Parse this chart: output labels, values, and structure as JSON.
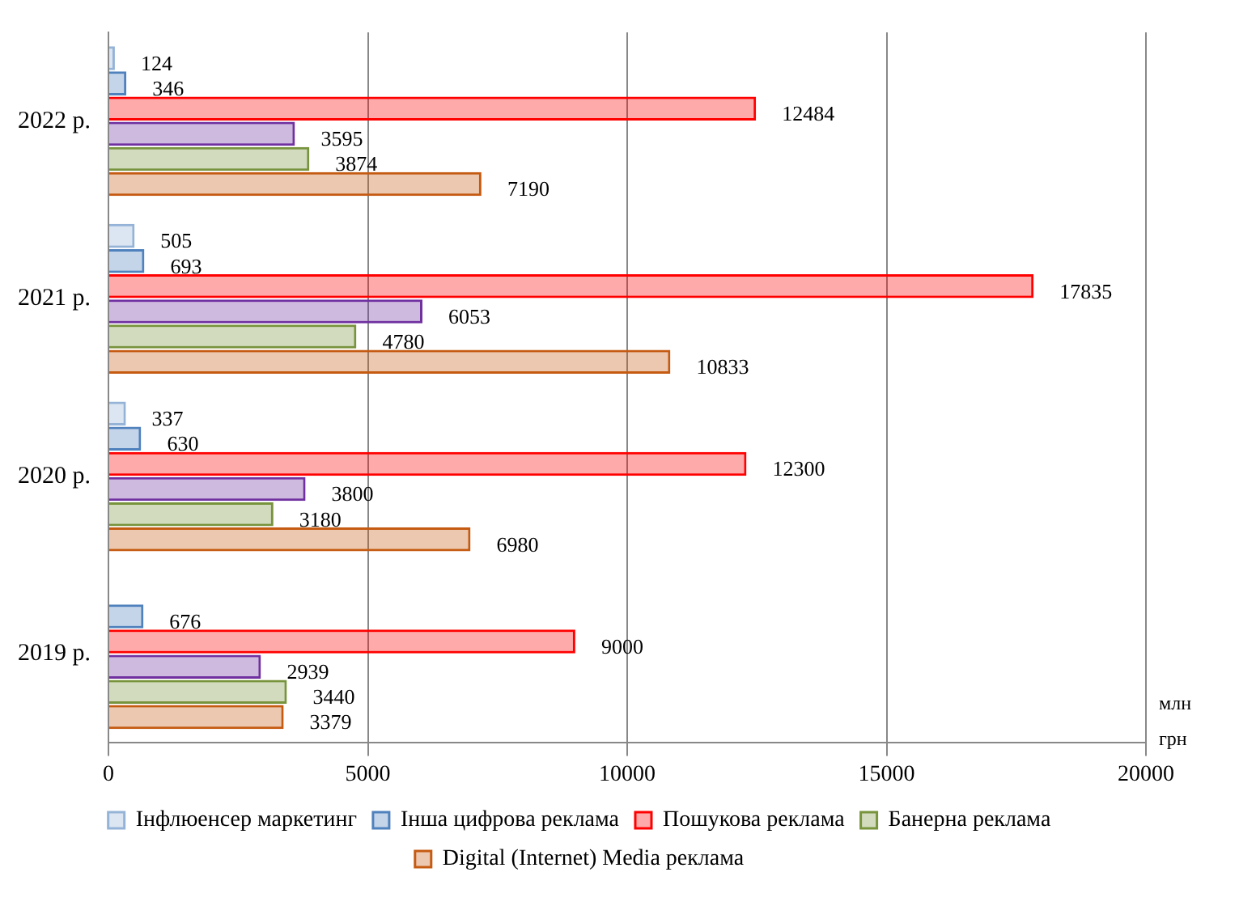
{
  "chart_data": {
    "type": "bar",
    "orientation": "horizontal",
    "categories": [
      "2022 р.",
      "2021 р.",
      "2020 р.",
      "2019 р."
    ],
    "series": [
      {
        "name": "Інфлюенсер маркетинг",
        "color": "#95b3d7",
        "values": [
          124,
          505,
          337,
          null
        ]
      },
      {
        "name": "Інша цифрова реклама",
        "color": "#4f81bd",
        "values": [
          346,
          693,
          630,
          676
        ]
      },
      {
        "name": "Пошукова реклама",
        "color": "#ff0000",
        "values": [
          12484,
          17835,
          12300,
          9000
        ]
      },
      {
        "color": "#7030a0",
        "values": [
          3595,
          6053,
          3800,
          2939
        ]
      },
      {
        "name": "Банерна реклама",
        "color": "#77933c",
        "values": [
          3874,
          4780,
          3180,
          3440
        ]
      },
      {
        "name": "Digital (Internet) Media реклама",
        "color": "#c55a11",
        "values": [
          7190,
          10833,
          6980,
          3379
        ]
      }
    ],
    "xlim": [
      0,
      20000
    ],
    "xticks": [
      0,
      5000,
      10000,
      15000,
      20000
    ],
    "xlabel": "млн грн",
    "grid": "x",
    "legend": "bottom",
    "data_labels": true
  }
}
